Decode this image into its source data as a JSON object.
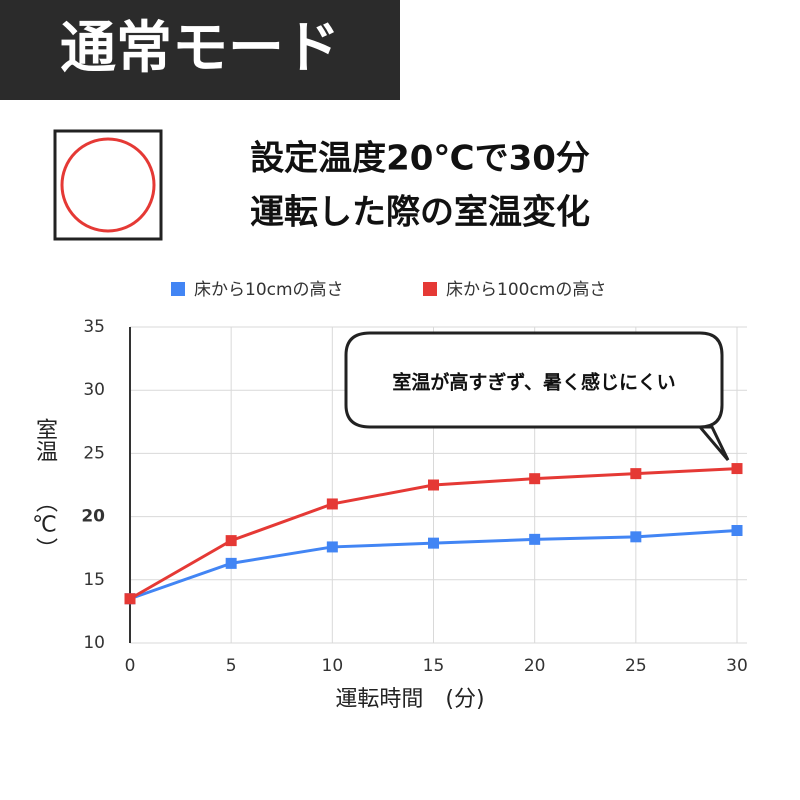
{
  "badge": "通常モード",
  "chart_data": {
    "type": "line",
    "title": [
      "設定温度20℃で30分",
      "運転した際の室温変化"
    ],
    "annotation": "室温が高すぎず、暑く感じにくい",
    "x_label": "運転時間　(分)",
    "y_label": [
      "室温",
      "（℃）"
    ],
    "x": [
      0,
      5,
      10,
      15,
      20,
      25,
      30
    ],
    "series": [
      {
        "name": "床から10cmの高さ",
        "color": "#4285f4",
        "values": [
          13.5,
          16.3,
          17.6,
          17.9,
          18.2,
          18.4,
          18.9
        ]
      },
      {
        "name": "床から100cmの高さ",
        "color": "#e53935",
        "values": [
          13.5,
          18.1,
          21.0,
          22.5,
          23.0,
          23.4,
          23.8
        ]
      }
    ],
    "xlim": [
      0,
      30
    ],
    "xticks": [
      0,
      5,
      10,
      15,
      20,
      25,
      30
    ],
    "ylim": [
      10,
      35
    ],
    "yticks": [
      10,
      15,
      20,
      25,
      30,
      35
    ],
    "highlight_ytick": 20,
    "highlight_color": "#e53935",
    "grid": true,
    "legend": "top"
  }
}
